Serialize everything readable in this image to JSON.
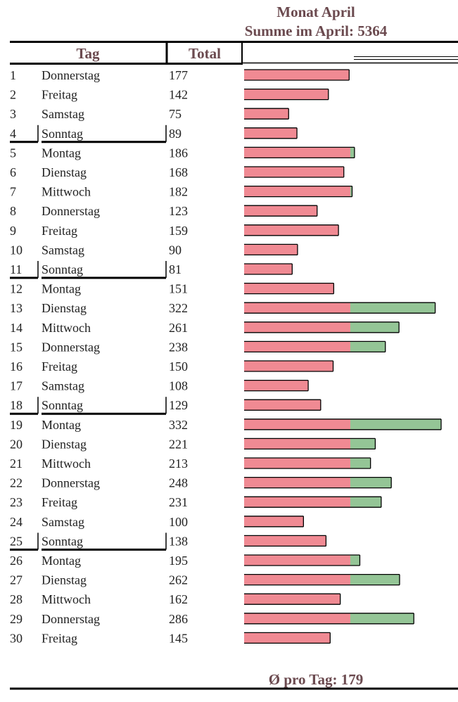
{
  "title": "Monat April",
  "subtitle": "Summe im April: 5364",
  "headers": {
    "tag": "Tag",
    "total": "Total"
  },
  "footer": "Ø pro Tag: 179",
  "colors": {
    "base": "#f08a93",
    "extra": "#94c596",
    "text": "#6b4a4f",
    "line": "#000000"
  },
  "chart_data": {
    "type": "bar",
    "orientation": "horizontal",
    "threshold": 179,
    "days": [
      {
        "day": "1",
        "weekday": "Donnerstag",
        "total": 177
      },
      {
        "day": "2",
        "weekday": "Freitag",
        "total": 142
      },
      {
        "day": "3",
        "weekday": "Samstag",
        "total": 75
      },
      {
        "day": "4",
        "weekday": "Sonntag",
        "total": 89
      },
      {
        "day": "5",
        "weekday": "Montag",
        "total": 186
      },
      {
        "day": "6",
        "weekday": "Dienstag",
        "total": 168
      },
      {
        "day": "7",
        "weekday": "Mittwoch",
        "total": 182
      },
      {
        "day": "8",
        "weekday": "Donnerstag",
        "total": 123
      },
      {
        "day": "9",
        "weekday": "Freitag",
        "total": 159
      },
      {
        "day": "10",
        "weekday": "Samstag",
        "total": 90
      },
      {
        "day": "11",
        "weekday": "Sonntag",
        "total": 81
      },
      {
        "day": "12",
        "weekday": "Montag",
        "total": 151
      },
      {
        "day": "13",
        "weekday": "Dienstag",
        "total": 322
      },
      {
        "day": "14",
        "weekday": "Mittwoch",
        "total": 261
      },
      {
        "day": "15",
        "weekday": "Donnerstag",
        "total": 238
      },
      {
        "day": "16",
        "weekday": "Freitag",
        "total": 150
      },
      {
        "day": "17",
        "weekday": "Samstag",
        "total": 108
      },
      {
        "day": "18",
        "weekday": "Sonntag",
        "total": 129
      },
      {
        "day": "19",
        "weekday": "Montag",
        "total": 332
      },
      {
        "day": "20",
        "weekday": "Dienstag",
        "total": 221
      },
      {
        "day": "21",
        "weekday": "Mittwoch",
        "total": 213
      },
      {
        "day": "22",
        "weekday": "Donnerstag",
        "total": 248
      },
      {
        "day": "23",
        "weekday": "Freitag",
        "total": 231
      },
      {
        "day": "24",
        "weekday": "Samstag",
        "total": 100
      },
      {
        "day": "25",
        "weekday": "Sonntag",
        "total": 138
      },
      {
        "day": "26",
        "weekday": "Montag",
        "total": 195
      },
      {
        "day": "27",
        "weekday": "Dienstag",
        "total": 262
      },
      {
        "day": "28",
        "weekday": "Mittwoch",
        "total": 162
      },
      {
        "day": "29",
        "weekday": "Donnerstag",
        "total": 286
      },
      {
        "day": "30",
        "weekday": "Freitag",
        "total": 145
      }
    ]
  }
}
